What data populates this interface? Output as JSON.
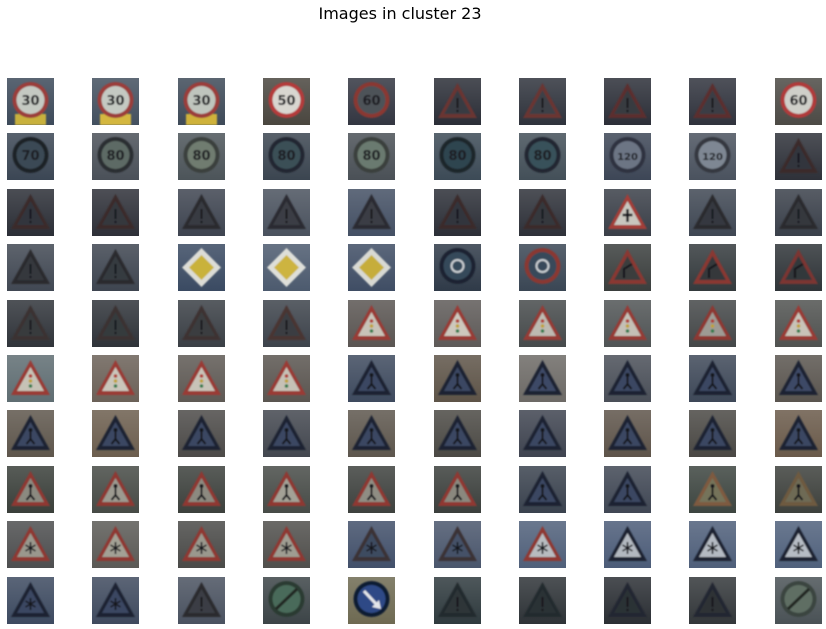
{
  "figure": {
    "title": "Images in cluster 23"
  },
  "palette": {
    "dark_bg": "#2a2d36",
    "sky": "#8fa7c0",
    "tree": "#3b3a3a",
    "sign_red": "#9a3a36",
    "sign_white": "#c9cdc6",
    "sign_yellow": "#c9b23a",
    "sign_blue": "#2d4a86",
    "brown_wall": "#6d5a48"
  },
  "images": [
    {
      "sign": "speed-30",
      "text": "30",
      "bg": "#3d4a5a",
      "accent": "#c8b13c",
      "ring": "#9b3c3a",
      "fill": "#c4c9c2"
    },
    {
      "sign": "speed-30",
      "text": "30",
      "bg": "#43505f",
      "accent": "#d4b73f",
      "ring": "#9b3c3a",
      "fill": "#c4c9c2"
    },
    {
      "sign": "speed-30",
      "text": "30",
      "bg": "#3e4a58",
      "accent": "#cfb23b",
      "ring": "#9b3c3a",
      "fill": "#bfc5bd"
    },
    {
      "sign": "speed-50",
      "text": "50",
      "bg": "#4a463f",
      "accent": "",
      "ring": "#b43a3a",
      "fill": "#d8d6d0"
    },
    {
      "sign": "speed-60",
      "text": "60",
      "bg": "#333641",
      "accent": "",
      "ring": "#8a3733",
      "fill": "#4e5258"
    },
    {
      "sign": "warning-dark",
      "text": "",
      "bg": "#2b2e37",
      "accent": "",
      "ring": "#6b3431",
      "fill": "#383b42"
    },
    {
      "sign": "warning-dark",
      "text": "",
      "bg": "#2f333c",
      "accent": "",
      "ring": "#6b3431",
      "fill": "#3d4047"
    },
    {
      "sign": "warning-dark",
      "text": "",
      "bg": "#2c2f38",
      "accent": "",
      "ring": "#5c2f2e",
      "fill": "#373a41"
    },
    {
      "sign": "warning-dark",
      "text": "",
      "bg": "#30333d",
      "accent": "",
      "ring": "#5c2f2e",
      "fill": "#3a3d44"
    },
    {
      "sign": "speed-60",
      "text": "60",
      "bg": "#4c4a45",
      "accent": "",
      "ring": "#b03a3a",
      "fill": "#cfcfc9"
    },
    {
      "sign": "speed-70",
      "text": "70",
      "bg": "#3b4654",
      "accent": "",
      "ring": "#1e2228",
      "fill": "#3a4a55"
    },
    {
      "sign": "speed-80",
      "text": "80",
      "bg": "#4a5058",
      "accent": "",
      "ring": "#2a2e33",
      "fill": "#5d6b65"
    },
    {
      "sign": "speed-80",
      "text": "80",
      "bg": "#4c5459",
      "accent": "",
      "ring": "#3a3f3c",
      "fill": "#707c70"
    },
    {
      "sign": "speed-80",
      "text": "80",
      "bg": "#3b4550",
      "accent": "",
      "ring": "#232830",
      "fill": "#3b4f57"
    },
    {
      "sign": "speed-80",
      "text": "80",
      "bg": "#4a5056",
      "accent": "",
      "ring": "#3a403d",
      "fill": "#6b7a6f"
    },
    {
      "sign": "speed-80",
      "text": "80",
      "bg": "#3c4a56",
      "accent": "",
      "ring": "#1f252b",
      "fill": "#2f4450"
    },
    {
      "sign": "speed-80",
      "text": "80",
      "bg": "#434f58",
      "accent": "",
      "ring": "#222830",
      "fill": "#39515a"
    },
    {
      "sign": "speed-120",
      "text": "120",
      "bg": "#3d4656",
      "accent": "",
      "ring": "#2e3340",
      "fill": "#6c7584"
    },
    {
      "sign": "speed-120",
      "text": "120",
      "bg": "#4a525e",
      "accent": "",
      "ring": "#34383f",
      "fill": "#7e8793"
    },
    {
      "sign": "warning-dark",
      "text": "",
      "bg": "#2e3139",
      "accent": "",
      "ring": "#3b2b2b",
      "fill": "#33363d"
    },
    {
      "sign": "warning-dark",
      "text": "",
      "bg": "#2b2e36",
      "accent": "",
      "ring": "#3a2c2c",
      "fill": "#32353c"
    },
    {
      "sign": "warning-dark",
      "text": "",
      "bg": "#2e3038",
      "accent": "",
      "ring": "#3a2c2c",
      "fill": "#34373e"
    },
    {
      "sign": "warning-dark",
      "text": "",
      "bg": "#3e4450",
      "accent": "",
      "ring": "#2a2b2f",
      "fill": "#383b42"
    },
    {
      "sign": "warning-dark",
      "text": "",
      "bg": "#4a525e",
      "accent": "",
      "ring": "#2b2c30",
      "fill": "#3a3d44"
    },
    {
      "sign": "warning-dark",
      "text": "",
      "bg": "#445064",
      "accent": "",
      "ring": "#2b2c30",
      "fill": "#3a3d44"
    },
    {
      "sign": "warning-dark",
      "text": "",
      "bg": "#2c2f37",
      "accent": "",
      "ring": "#3b2c2c",
      "fill": "#33363d"
    },
    {
      "sign": "warning-dark",
      "text": "",
      "bg": "#2e3139",
      "accent": "",
      "ring": "#3b2c2c",
      "fill": "#34373e"
    },
    {
      "sign": "priority-warning",
      "text": "",
      "bg": "#3a3f48",
      "accent": "",
      "ring": "#a33d38",
      "fill": "#c8c6be"
    },
    {
      "sign": "warning-dark",
      "text": "",
      "bg": "#3f4753",
      "accent": "",
      "ring": "#2a2b2f",
      "fill": "#36393f"
    },
    {
      "sign": "warning-dark",
      "text": "",
      "bg": "#3a404a",
      "accent": "",
      "ring": "#2a2b2f",
      "fill": "#35383e"
    },
    {
      "sign": "warning-dark",
      "text": "",
      "bg": "#414853",
      "accent": "",
      "ring": "#2b2b2e",
      "fill": "#35383e"
    },
    {
      "sign": "warning-dark",
      "text": "",
      "bg": "#3e4550",
      "accent": "",
      "ring": "#2b2b2e",
      "fill": "#363a40"
    },
    {
      "sign": "priority-road",
      "text": "",
      "bg": "#3a4a62",
      "accent": "#c9b23a",
      "ring": "#dcdcd6",
      "fill": "#c9b23a"
    },
    {
      "sign": "priority-road",
      "text": "",
      "bg": "#4c5a6e",
      "accent": "#cdb440",
      "ring": "#dedfd9",
      "fill": "#cdb440"
    },
    {
      "sign": "priority-road",
      "text": "",
      "bg": "#3f4d64",
      "accent": "#c6ad3a",
      "ring": "#d8d9d3",
      "fill": "#c6ad3a"
    },
    {
      "sign": "roundabout",
      "text": "",
      "bg": "#2f3a48",
      "accent": "",
      "ring": "#1b2430",
      "fill": "#36485a"
    },
    {
      "sign": "roundabout",
      "text": "",
      "bg": "#3a4654",
      "accent": "",
      "ring": "#8a3733",
      "fill": "#384a5a"
    },
    {
      "sign": "curve-warning",
      "text": "",
      "bg": "#3a3e3d",
      "accent": "",
      "ring": "#8a3733",
      "fill": "#3a3d3e"
    },
    {
      "sign": "curve-warning",
      "text": "",
      "bg": "#343a3d",
      "accent": "",
      "ring": "#8a3733",
      "fill": "#36393b"
    },
    {
      "sign": "curve-warning",
      "text": "",
      "bg": "#2f3438",
      "accent": "",
      "ring": "#7b3532",
      "fill": "#33373a"
    },
    {
      "sign": "warning-dark",
      "text": "",
      "bg": "#30343a",
      "accent": "",
      "ring": "#3a3230",
      "fill": "#383b3e"
    },
    {
      "sign": "warning-dark",
      "text": "",
      "bg": "#2f3339",
      "accent": "",
      "ring": "#3a3230",
      "fill": "#363a3d"
    },
    {
      "sign": "warning-dark",
      "text": "",
      "bg": "#3a3f45",
      "accent": "",
      "ring": "#3c3331",
      "fill": "#3b3e41"
    },
    {
      "sign": "warning-dark",
      "text": "",
      "bg": "#3d434b",
      "accent": "",
      "ring": "#4a3432",
      "fill": "#3b3e42"
    },
    {
      "sign": "traffic-signal",
      "text": "",
      "bg": "#5a5552",
      "accent": "",
      "ring": "#9a3a36",
      "fill": "#c8c3b8"
    },
    {
      "sign": "traffic-signal",
      "text": "",
      "bg": "#5e5a58",
      "accent": "",
      "ring": "#9a3a36",
      "fill": "#cdc8bd"
    },
    {
      "sign": "traffic-signal",
      "text": "",
      "bg": "#464a4b",
      "accent": "",
      "ring": "#963a36",
      "fill": "#bdbab1"
    },
    {
      "sign": "traffic-signal",
      "text": "",
      "bg": "#505455",
      "accent": "",
      "ring": "#963a36",
      "fill": "#c4c0b6"
    },
    {
      "sign": "traffic-signal",
      "text": "",
      "bg": "#444748",
      "accent": "",
      "ring": "#8e3733",
      "fill": "#9e9b94"
    },
    {
      "sign": "traffic-signal",
      "text": "",
      "bg": "#505250",
      "accent": "",
      "ring": "#9a3a36",
      "fill": "#c8c3b8"
    },
    {
      "sign": "traffic-signal",
      "text": "",
      "bg": "#5f6d72",
      "accent": "",
      "ring": "#9a3a36",
      "fill": "#c6c2b6"
    },
    {
      "sign": "traffic-signal",
      "text": "",
      "bg": "#6b6158",
      "accent": "",
      "ring": "#9a3a36",
      "fill": "#cac6bb"
    },
    {
      "sign": "traffic-signal",
      "text": "",
      "bg": "#5e5954",
      "accent": "",
      "ring": "#9a3a36",
      "fill": "#c8c3b8"
    },
    {
      "sign": "traffic-signal",
      "text": "",
      "bg": "#5a5550",
      "accent": "",
      "ring": "#9a3a36",
      "fill": "#c6c1b6"
    },
    {
      "sign": "pedestrian-dark",
      "text": "",
      "bg": "#3e4a5e",
      "accent": "",
      "ring": "#1c2130",
      "fill": "#3a4762"
    },
    {
      "sign": "pedestrian-dark",
      "text": "",
      "bg": "#5e5448",
      "accent": "",
      "ring": "#1c2130",
      "fill": "#3a4762"
    },
    {
      "sign": "pedestrian-dark",
      "text": "",
      "bg": "#6d6a66",
      "accent": "",
      "ring": "#1c2130",
      "fill": "#3d4a66"
    },
    {
      "sign": "pedestrian-dark",
      "text": "",
      "bg": "#4a4f58",
      "accent": "",
      "ring": "#1c2130",
      "fill": "#3a4762"
    },
    {
      "sign": "pedestrian-dark",
      "text": "",
      "bg": "#3e4858",
      "accent": "",
      "ring": "#1c2130",
      "fill": "#3a4762"
    },
    {
      "sign": "pedestrian-dark",
      "text": "",
      "bg": "#5a554f",
      "accent": "",
      "ring": "#1c2130",
      "fill": "#3d4a66"
    },
    {
      "sign": "pedestrian-dark",
      "text": "",
      "bg": "#5e564c",
      "accent": "",
      "ring": "#1c2130",
      "fill": "#3a4762"
    },
    {
      "sign": "pedestrian-dark",
      "text": "",
      "bg": "#6c5e4e",
      "accent": "",
      "ring": "#1c2130",
      "fill": "#3a4762"
    },
    {
      "sign": "pedestrian-dark",
      "text": "",
      "bg": "#4c4a48",
      "accent": "",
      "ring": "#1c2130",
      "fill": "#3a4762"
    },
    {
      "sign": "pedestrian-dark",
      "text": "",
      "bg": "#43474f",
      "accent": "",
      "ring": "#1c2130",
      "fill": "#3a4762"
    },
    {
      "sign": "pedestrian-dark",
      "text": "",
      "bg": "#5d564d",
      "accent": "",
      "ring": "#1c2130",
      "fill": "#3a4762"
    },
    {
      "sign": "pedestrian-dark",
      "text": "",
      "bg": "#4b4944",
      "accent": "",
      "ring": "#1c2130",
      "fill": "#3a4762"
    },
    {
      "sign": "pedestrian-dark",
      "text": "",
      "bg": "#3f4450",
      "accent": "",
      "ring": "#1c2130",
      "fill": "#3a4762"
    },
    {
      "sign": "pedestrian-dark",
      "text": "",
      "bg": "#5e544a",
      "accent": "",
      "ring": "#1c2130",
      "fill": "#3a4762"
    },
    {
      "sign": "pedestrian-dark",
      "text": "",
      "bg": "#4a4844",
      "accent": "",
      "ring": "#1c2130",
      "fill": "#3a4762"
    },
    {
      "sign": "pedestrian-dark",
      "text": "",
      "bg": "#6a5a4a",
      "accent": "",
      "ring": "#1c2130",
      "fill": "#3a4762"
    },
    {
      "sign": "pedestrian-warning",
      "text": "",
      "bg": "#3a3f3a",
      "accent": "",
      "ring": "#8f3733",
      "fill": "#8b8a80"
    },
    {
      "sign": "pedestrian-warning",
      "text": "",
      "bg": "#464a45",
      "accent": "",
      "ring": "#8f3733",
      "fill": "#9c9a90"
    },
    {
      "sign": "pedestrian-warning",
      "text": "",
      "bg": "#3c403c",
      "accent": "",
      "ring": "#8f3733",
      "fill": "#8c8a80"
    },
    {
      "sign": "pedestrian-warning",
      "text": "",
      "bg": "#474b47",
      "accent": "",
      "ring": "#8f3733",
      "fill": "#a3a196"
    },
    {
      "sign": "pedestrian-warning",
      "text": "",
      "bg": "#3e413e",
      "accent": "",
      "ring": "#8f3733",
      "fill": "#8f8d83"
    },
    {
      "sign": "pedestrian-warning",
      "text": "",
      "bg": "#3b3f3c",
      "accent": "",
      "ring": "#8f3733",
      "fill": "#8a887e"
    },
    {
      "sign": "pedestrian-dark",
      "text": "",
      "bg": "#3a424e",
      "accent": "",
      "ring": "#1c2130",
      "fill": "#3a4762"
    },
    {
      "sign": "pedestrian-dark",
      "text": "",
      "bg": "#404754",
      "accent": "",
      "ring": "#1c2130",
      "fill": "#3a4762"
    },
    {
      "sign": "pedestrian-warning",
      "text": "",
      "bg": "#3d4540",
      "accent": "",
      "ring": "#7e5a40",
      "fill": "#74735a"
    },
    {
      "sign": "pedestrian-warning",
      "text": "",
      "bg": "#3d403c",
      "accent": "",
      "ring": "#6e5a40",
      "fill": "#6e6a55"
    },
    {
      "sign": "snow-warning",
      "text": "",
      "bg": "#4d4e4f",
      "accent": "",
      "ring": "#8f3733",
      "fill": "#9a988d"
    },
    {
      "sign": "snow-warning",
      "text": "",
      "bg": "#5b5a56",
      "accent": "",
      "ring": "#8f3733",
      "fill": "#a3a195"
    },
    {
      "sign": "snow-warning",
      "text": "",
      "bg": "#4a4a48",
      "accent": "",
      "ring": "#8f3733",
      "fill": "#9a988d"
    },
    {
      "sign": "snow-warning",
      "text": "",
      "bg": "#504f4c",
      "accent": "",
      "ring": "#8f3733",
      "fill": "#9f9d92"
    },
    {
      "sign": "snow-dark",
      "text": "",
      "bg": "#42506a",
      "accent": "",
      "ring": "#3a3036",
      "fill": "#3e4b60"
    },
    {
      "sign": "snow-dark",
      "text": "",
      "bg": "#4a566c",
      "accent": "",
      "ring": "#3a3036",
      "fill": "#445168"
    },
    {
      "sign": "snow-warning",
      "text": "",
      "bg": "#50607a",
      "accent": "",
      "ring": "#8f3733",
      "fill": "#b8bcc0"
    },
    {
      "sign": "snow-warning",
      "text": "",
      "bg": "#4c5c78",
      "accent": "",
      "ring": "#1c2130",
      "fill": "#b2b8c0"
    },
    {
      "sign": "snow-warning",
      "text": "",
      "bg": "#4f5f7a",
      "accent": "",
      "ring": "#1c2130",
      "fill": "#b4bac2"
    },
    {
      "sign": "snow-warning",
      "text": "",
      "bg": "#50617c",
      "accent": "",
      "ring": "#1c2130",
      "fill": "#b6bcc4"
    },
    {
      "sign": "snow-dark",
      "text": "",
      "bg": "#3d4a60",
      "accent": "",
      "ring": "#1c2130",
      "fill": "#3a4762"
    },
    {
      "sign": "snow-dark",
      "text": "",
      "bg": "#3f4a5e",
      "accent": "",
      "ring": "#1c2130",
      "fill": "#3a4762"
    },
    {
      "sign": "warning-dark",
      "text": "",
      "bg": "#4a5260",
      "accent": "",
      "ring": "#2a2b2f",
      "fill": "#3a3d44"
    },
    {
      "sign": "end-limit",
      "text": "",
      "bg": "#3c4447",
      "accent": "",
      "ring": "#2a3a33",
      "fill": "#4a6a5a"
    },
    {
      "sign": "blue-arrow",
      "text": "",
      "bg": "#6e6a52",
      "accent": "",
      "ring": "#111a30",
      "fill": "#2d4a86"
    },
    {
      "sign": "warning-dark",
      "text": "",
      "bg": "#2f3a3e",
      "accent": "",
      "ring": "#242a2e",
      "fill": "#2e3538"
    },
    {
      "sign": "warning-dark",
      "text": "",
      "bg": "#2e3337",
      "accent": "",
      "ring": "#242a2e",
      "fill": "#2c3134"
    },
    {
      "sign": "warning-dark",
      "text": "",
      "bg": "#2b2f34",
      "accent": "",
      "ring": "#232830",
      "fill": "#2c3035"
    },
    {
      "sign": "warning-dark",
      "text": "",
      "bg": "#33373a",
      "accent": "",
      "ring": "#232830",
      "fill": "#2e3236"
    },
    {
      "sign": "end-no-overtaking",
      "text": "",
      "bg": "#4a5256",
      "accent": "",
      "ring": "#3a4540",
      "fill": "#5e6e63"
    }
  ]
}
